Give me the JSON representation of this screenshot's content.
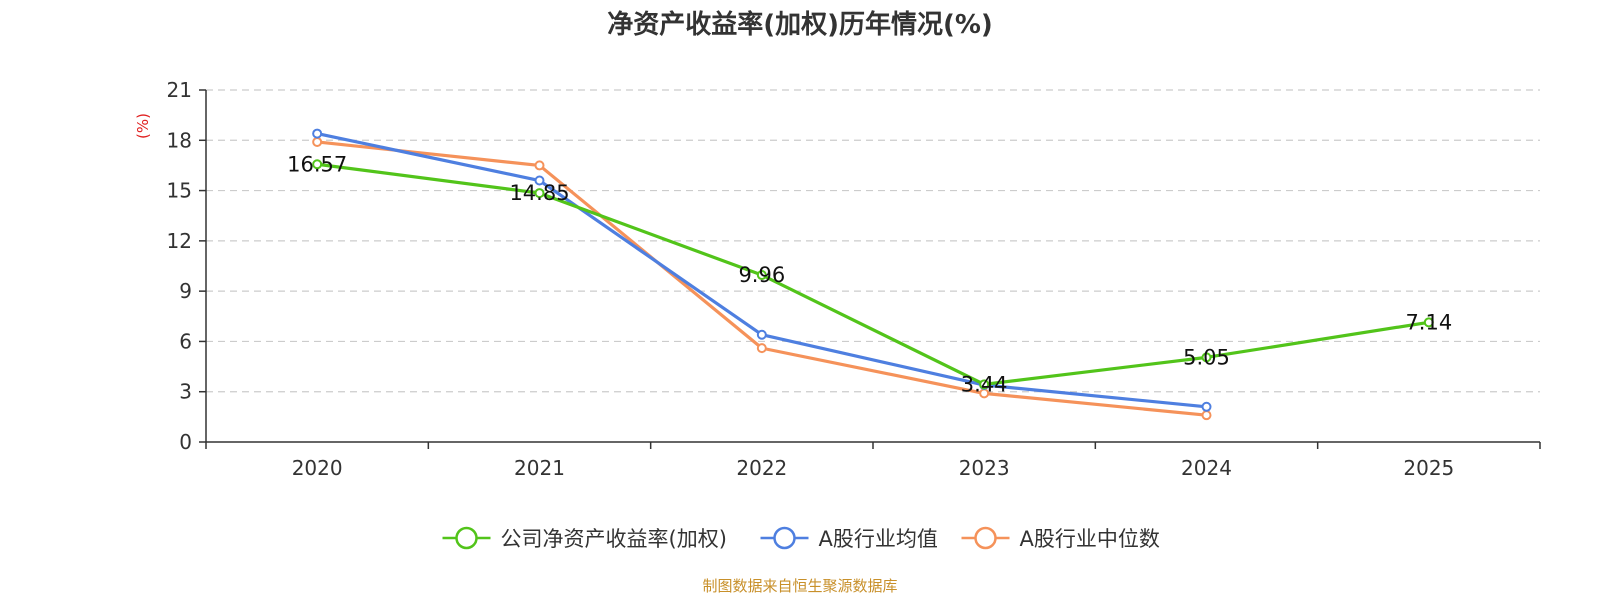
{
  "chart_data": {
    "type": "line",
    "title": "净资产收益率(加权)历年情况(%)",
    "ylabel": "(%)",
    "xlabel": "",
    "categories": [
      "2020",
      "2021",
      "2022",
      "2023",
      "2024",
      "2025"
    ],
    "ylim": [
      0,
      21
    ],
    "yticks": [
      0,
      3,
      6,
      9,
      12,
      15,
      18,
      21
    ],
    "grid": true,
    "legend_position": "bottom",
    "series": [
      {
        "name": "公司净资产收益率(加权)",
        "color": "#52c41a",
        "values": [
          16.57,
          14.85,
          9.96,
          3.44,
          5.05,
          7.14
        ],
        "value_labels": [
          "16.57",
          "14.85",
          "9.96",
          "3.44",
          "5.05",
          "7.14"
        ],
        "show_labels": true
      },
      {
        "name": "A股行业均值",
        "color": "#4e7fe0",
        "values": [
          18.4,
          15.6,
          6.4,
          3.4,
          2.1,
          null
        ],
        "show_labels": false
      },
      {
        "name": "A股行业中位数",
        "color": "#f5925a",
        "values": [
          17.9,
          16.5,
          5.6,
          2.9,
          1.6,
          null
        ],
        "show_labels": false
      }
    ]
  },
  "source_text": "制图数据来自恒生聚源数据库",
  "colors": {
    "axis": "#333333",
    "grid": "#cccccc",
    "ylabel": "#e02020",
    "source": "#c8902a"
  }
}
